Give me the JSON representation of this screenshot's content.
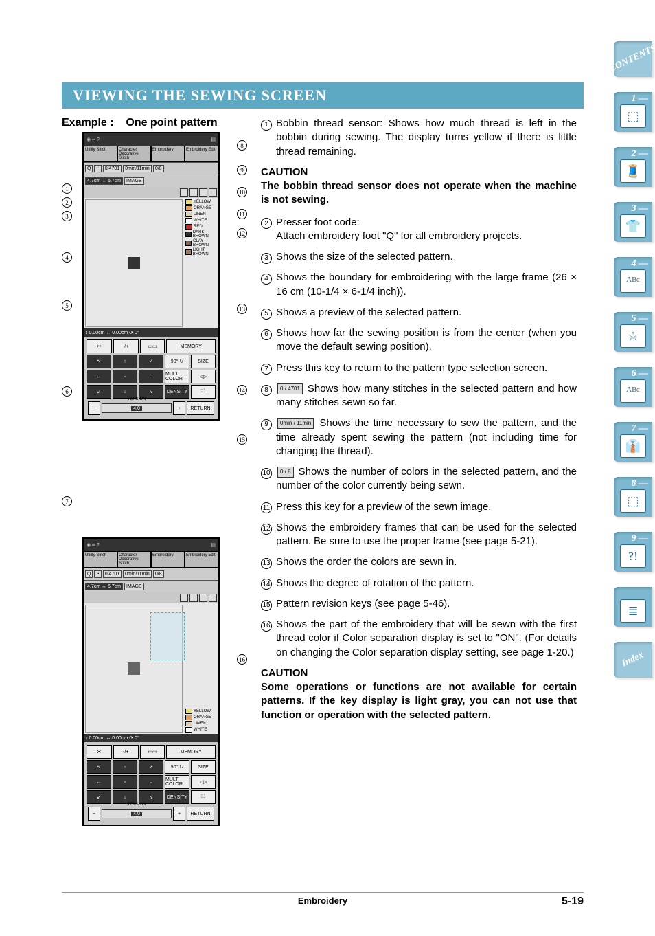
{
  "heading": "VIEWING THE SEWING SCREEN",
  "example_label": "Example :    One point pattern",
  "screen1": {
    "tabs": [
      "Utility\nStitch",
      "Character\nDecorative\nStitch",
      "Embroidery",
      "Embroidery\nEdit"
    ],
    "stitch_count": "4701",
    "stitch_current": "0",
    "time_text": "0min / 11min",
    "time_top": "0min",
    "time_bottom": "11min",
    "colors_text": "0 / 8",
    "colors_top": "0",
    "colors_bottom": "8",
    "size_text": "4.7cm ↔ 6.7cm",
    "image_btn": "IMAGE",
    "color_list": [
      {
        "name": "YELLOW",
        "hex": "#e8e070"
      },
      {
        "name": "ORANGE",
        "hex": "#e0a050"
      },
      {
        "name": "LINEN",
        "hex": "#d8d0b0"
      },
      {
        "name": "WHITE",
        "hex": "#ffffff"
      },
      {
        "name": "RED",
        "hex": "#c03030"
      },
      {
        "name": "DARK BROWN",
        "hex": "#303030"
      },
      {
        "name": "CLAY BROWN",
        "hex": "#806050"
      },
      {
        "name": "LIGHT BROWN",
        "hex": "#a08060"
      }
    ],
    "pos_text": "↕ 0.00cm  ↔ 0.00cm  ⟳ 0°",
    "memory_btn": "MEMORY",
    "size_btn": "SIZE",
    "multi_color": "MULTI COLOR",
    "density": "DENSITY",
    "tension_label": "TENSION",
    "tension_val": "4.0",
    "return_btn": "RETURN",
    "rotate_btn": "90° ↻",
    "foot_code": "Q"
  },
  "screen2": {
    "color_list": [
      {
        "name": "YELLOW",
        "hex": "#e8e070"
      },
      {
        "name": "ORANGE",
        "hex": "#e0a050"
      },
      {
        "name": "LINEN",
        "hex": "#d8d0b0"
      },
      {
        "name": "WHITE",
        "hex": "#ffffff"
      }
    ]
  },
  "callouts_left": [
    "1",
    "2",
    "3",
    "4",
    "5",
    "6",
    "7"
  ],
  "callouts_right1": [
    "8",
    "9",
    "10",
    "11",
    "12",
    "13",
    "14",
    "15"
  ],
  "callouts_right2": [
    "16"
  ],
  "descriptions": {
    "d1": "Bobbin thread sensor: Shows how much thread is left in the bobbin during sewing. The display turns yellow if there is little thread remaining.",
    "caution1_head": "CAUTION",
    "caution1": "The bobbin thread sensor does not operate when the machine is not sewing.",
    "d2a": "Presser foot code:",
    "d2b": "Attach embroidery foot \"Q\" for all embroidery projects.",
    "d3": "Shows the size of the selected pattern.",
    "d4": "Shows the boundary for embroidering with the large frame (26 × 16 cm (10-1/4 × 6-1/4 inch)).",
    "d5": "Shows a preview of the selected pattern.",
    "d6": "Shows how far the sewing position is from the center (when you move the default sewing position).",
    "d7": "Press this key to return to the pattern type selection screen.",
    "d8": "Shows how many stitches in the selected pattern and how many stitches sewn so far.",
    "d9": "Shows the time necessary to sew the pattern, and the time already spent sewing the pattern (not including time for changing the thread).",
    "d10": "Shows the number of colors in the selected pattern, and the number of the color currently being sewn.",
    "d11": "Press this key for a preview of the sewn image.",
    "d12": "Shows the embroidery frames that can be used for the selected pattern. Be sure to use the proper frame (see page 5-21).",
    "d13": "Shows the order the colors are sewn in.",
    "d14": "Shows the degree of rotation of the pattern.",
    "d15": "Pattern revision keys (see page 5-46).",
    "d16": "Shows the part of the embroidery that will be sewn with the first thread color if Color separation display is set to \"ON\". (For details on changing the Color separation display setting, see page 1-20.)",
    "caution2_head": "CAUTION",
    "caution2": "Some operations or functions are not available for certain patterns. If the key display is light gray, you can not use that function or operation with the selected pattern."
  },
  "inline_icons": {
    "i8": "0 / 4701",
    "i9": "0min / 11min",
    "i10": "0 / 8"
  },
  "footer": {
    "center": "Embroidery",
    "page": "5-19"
  },
  "side_tabs": [
    {
      "label": "1 —",
      "glyph": "⬚"
    },
    {
      "label": "2 —",
      "glyph": "🧵"
    },
    {
      "label": "3 —",
      "glyph": "👕"
    },
    {
      "label": "4 —",
      "glyph": "ᴬᴮᶜ"
    },
    {
      "label": "5 —",
      "glyph": "☆"
    },
    {
      "label": "6 —",
      "glyph": "ᴬᴮᶜ"
    },
    {
      "label": "7 —",
      "glyph": "👔"
    },
    {
      "label": "8 —",
      "glyph": "⬚"
    },
    {
      "label": "9 —",
      "glyph": "?!"
    },
    {
      "label": "",
      "glyph": "≣"
    }
  ],
  "corner_tabs": {
    "top": "CONTENTS",
    "bottom": "Index"
  }
}
